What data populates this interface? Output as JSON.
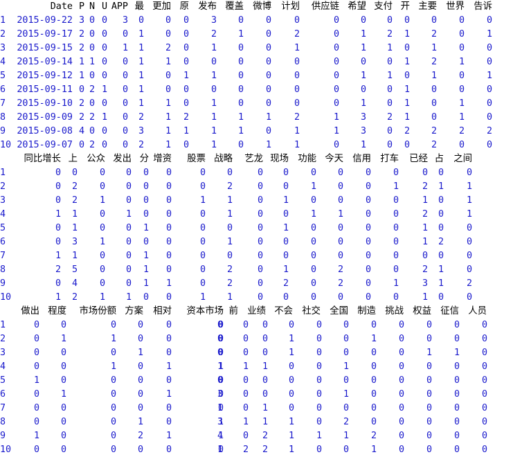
{
  "colors": {
    "header": "#000000",
    "value": "#1a1acc",
    "background": "#ffffff"
  },
  "blocks": [
    {
      "columns": [
        "",
        "Date",
        "P",
        "N",
        "U",
        "APP",
        "最",
        "更加",
        "原",
        "发布",
        "覆盖",
        "微博",
        "计划",
        "供应链",
        "希望",
        "支付",
        "开",
        "主要",
        "世界",
        "告诉"
      ],
      "rows": [
        [
          "1",
          "2015-09-22",
          "3",
          "0",
          "0",
          "3",
          "0",
          "0",
          "0",
          "3",
          "0",
          "0",
          "0",
          "0",
          "0",
          "0",
          "0",
          "0",
          "0",
          "0"
        ],
        [
          "2",
          "2015-09-17",
          "2",
          "0",
          "0",
          "0",
          "1",
          "0",
          "0",
          "2",
          "1",
          "0",
          "2",
          "0",
          "1",
          "2",
          "1",
          "2",
          "0",
          "1"
        ],
        [
          "3",
          "2015-09-15",
          "2",
          "0",
          "0",
          "1",
          "1",
          "2",
          "0",
          "1",
          "0",
          "0",
          "1",
          "0",
          "1",
          "1",
          "0",
          "1",
          "0",
          "0"
        ],
        [
          "4",
          "2015-09-14",
          "1",
          "1",
          "0",
          "0",
          "1",
          "1",
          "0",
          "0",
          "0",
          "0",
          "0",
          "0",
          "0",
          "0",
          "1",
          "2",
          "1",
          "0"
        ],
        [
          "5",
          "2015-09-12",
          "1",
          "0",
          "0",
          "0",
          "1",
          "0",
          "1",
          "1",
          "0",
          "0",
          "0",
          "0",
          "1",
          "1",
          "0",
          "1",
          "0",
          "1"
        ],
        [
          "6",
          "2015-09-11",
          "0",
          "2",
          "1",
          "0",
          "1",
          "0",
          "0",
          "0",
          "0",
          "0",
          "0",
          "0",
          "0",
          "0",
          "1",
          "0",
          "0",
          "0"
        ],
        [
          "7",
          "2015-09-10",
          "2",
          "0",
          "0",
          "0",
          "1",
          "1",
          "0",
          "1",
          "0",
          "0",
          "0",
          "0",
          "1",
          "0",
          "1",
          "0",
          "1",
          "0"
        ],
        [
          "8",
          "2015-09-09",
          "2",
          "2",
          "1",
          "0",
          "2",
          "1",
          "2",
          "1",
          "1",
          "1",
          "2",
          "1",
          "3",
          "2",
          "1",
          "0",
          "1",
          "0"
        ],
        [
          "9",
          "2015-09-08",
          "4",
          "0",
          "0",
          "0",
          "3",
          "1",
          "1",
          "1",
          "1",
          "0",
          "1",
          "1",
          "3",
          "0",
          "2",
          "2",
          "2",
          "2"
        ],
        [
          "10",
          "2015-09-07",
          "0",
          "2",
          "0",
          "0",
          "2",
          "1",
          "0",
          "1",
          "0",
          "1",
          "1",
          "0",
          "1",
          "0",
          "0",
          "2",
          "0",
          "0"
        ]
      ]
    },
    {
      "columns": [
        "",
        "同比增长",
        "上",
        "公众",
        "发出",
        "分",
        "增资",
        "股票",
        "战略",
        "艺龙",
        "现场",
        "功能",
        "今天",
        "信用",
        "打车",
        "已经",
        "占",
        "之间"
      ],
      "rows": [
        [
          "1",
          "0",
          "0",
          "0",
          "0",
          "0",
          "0",
          "0",
          "0",
          "0",
          "0",
          "0",
          "0",
          "0",
          "0",
          "0",
          "0",
          "0"
        ],
        [
          "2",
          "0",
          "2",
          "0",
          "0",
          "0",
          "0",
          "0",
          "2",
          "0",
          "0",
          "1",
          "0",
          "0",
          "1",
          "2",
          "1",
          "1"
        ],
        [
          "3",
          "0",
          "2",
          "1",
          "0",
          "0",
          "0",
          "1",
          "1",
          "0",
          "1",
          "0",
          "0",
          "0",
          "0",
          "1",
          "0",
          "1"
        ],
        [
          "4",
          "1",
          "1",
          "0",
          "1",
          "0",
          "0",
          "0",
          "1",
          "0",
          "0",
          "1",
          "1",
          "0",
          "0",
          "2",
          "0",
          "1"
        ],
        [
          "5",
          "0",
          "1",
          "0",
          "0",
          "1",
          "0",
          "0",
          "0",
          "0",
          "1",
          "0",
          "0",
          "0",
          "0",
          "1",
          "0",
          "0"
        ],
        [
          "6",
          "0",
          "3",
          "1",
          "0",
          "0",
          "0",
          "0",
          "1",
          "0",
          "0",
          "0",
          "0",
          "0",
          "0",
          "1",
          "2",
          "0"
        ],
        [
          "7",
          "1",
          "1",
          "0",
          "0",
          "1",
          "0",
          "0",
          "0",
          "0",
          "0",
          "0",
          "0",
          "0",
          "0",
          "0",
          "0",
          "0"
        ],
        [
          "8",
          "2",
          "5",
          "0",
          "0",
          "1",
          "0",
          "0",
          "2",
          "0",
          "1",
          "0",
          "2",
          "0",
          "0",
          "2",
          "1",
          "0"
        ],
        [
          "9",
          "0",
          "4",
          "0",
          "0",
          "1",
          "1",
          "0",
          "2",
          "0",
          "2",
          "0",
          "2",
          "0",
          "1",
          "3",
          "1",
          "2"
        ],
        [
          "10",
          "1",
          "2",
          "1",
          "1",
          "0",
          "0",
          "1",
          "1",
          "0",
          "0",
          "0",
          "0",
          "0",
          "0",
          "1",
          "0",
          "0"
        ]
      ]
    },
    {
      "columns": [
        "",
        "做出",
        "程度",
        "市场份额",
        "方案",
        "相对",
        "资本市场",
        "前",
        "业绩",
        "不会",
        "社交",
        "全国",
        "制造",
        "挑战",
        "权益",
        "征信",
        "人员"
      ],
      "rows": [
        [
          "1",
          "0",
          "0",
          "0",
          "0",
          "0",
          "0",
          "0",
          "0",
          "0",
          "0",
          "0",
          "0",
          "0",
          "0",
          "0",
          "0",
          "0"
        ],
        [
          "2",
          "0",
          "1",
          "1",
          "0",
          "0",
          "0",
          "0",
          "0",
          "0",
          "1",
          "0",
          "0",
          "1",
          "0",
          "0",
          "0",
          "0"
        ],
        [
          "3",
          "0",
          "0",
          "0",
          "1",
          "0",
          "0",
          "0",
          "0",
          "0",
          "1",
          "0",
          "0",
          "0",
          "0",
          "1",
          "1",
          "0"
        ],
        [
          "4",
          "0",
          "0",
          "1",
          "0",
          "1",
          "1",
          "1",
          "1",
          "1",
          "0",
          "0",
          "1",
          "0",
          "0",
          "0",
          "0",
          "0"
        ],
        [
          "5",
          "1",
          "0",
          "0",
          "0",
          "0",
          "0",
          "0",
          "0",
          "0",
          "0",
          "0",
          "0",
          "0",
          "0",
          "0",
          "0",
          "0"
        ],
        [
          "6",
          "0",
          "1",
          "0",
          "0",
          "1",
          "0",
          "3",
          "0",
          "0",
          "0",
          "0",
          "1",
          "0",
          "0",
          "0",
          "0",
          "0"
        ],
        [
          "7",
          "0",
          "0",
          "0",
          "0",
          "0",
          "0",
          "1",
          "0",
          "1",
          "0",
          "0",
          "0",
          "0",
          "0",
          "0",
          "0",
          "0"
        ],
        [
          "8",
          "0",
          "0",
          "0",
          "1",
          "0",
          "1",
          "3",
          "1",
          "1",
          "1",
          "0",
          "2",
          "0",
          "0",
          "0",
          "0",
          "0"
        ],
        [
          "9",
          "1",
          "0",
          "0",
          "2",
          "1",
          "1",
          "4",
          "0",
          "2",
          "1",
          "1",
          "1",
          "2",
          "0",
          "0",
          "0",
          "0"
        ],
        [
          "10",
          "0",
          "0",
          "0",
          "0",
          "0",
          "0",
          "1",
          "2",
          "2",
          "1",
          "0",
          "0",
          "1",
          "0",
          "0",
          "0",
          "0"
        ]
      ]
    }
  ]
}
